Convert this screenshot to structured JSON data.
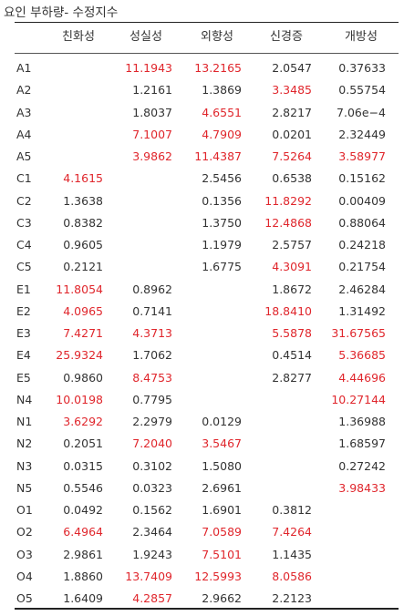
{
  "title": "요인 부하량- 수정지수",
  "columns": [
    "친화성",
    "성실성",
    "외향성",
    "신경증",
    "개방성"
  ],
  "colors": {
    "highlight": "#e0262c",
    "normal": "#333333"
  },
  "rows": [
    {
      "label": "A1",
      "cells": [
        {
          "v": ""
        },
        {
          "v": "11.1943",
          "hl": true
        },
        {
          "v": "13.2165",
          "hl": true
        },
        {
          "v": "2.0547"
        },
        {
          "v": "0.37633"
        }
      ]
    },
    {
      "label": "A2",
      "cells": [
        {
          "v": ""
        },
        {
          "v": "1.2161"
        },
        {
          "v": "1.3869"
        },
        {
          "v": "3.3485",
          "hl": true
        },
        {
          "v": "0.55754"
        }
      ]
    },
    {
      "label": "A3",
      "cells": [
        {
          "v": ""
        },
        {
          "v": "1.8037"
        },
        {
          "v": "4.6551",
          "hl": true
        },
        {
          "v": "2.8217"
        },
        {
          "v": "7.06e−4"
        }
      ]
    },
    {
      "label": "A4",
      "cells": [
        {
          "v": ""
        },
        {
          "v": "7.1007",
          "hl": true
        },
        {
          "v": "4.7909",
          "hl": true
        },
        {
          "v": "0.0201"
        },
        {
          "v": "2.32449"
        }
      ]
    },
    {
      "label": "A5",
      "cells": [
        {
          "v": ""
        },
        {
          "v": "3.9862",
          "hl": true
        },
        {
          "v": "11.4387",
          "hl": true
        },
        {
          "v": "7.5264",
          "hl": true
        },
        {
          "v": "3.58977",
          "hl": true
        }
      ]
    },
    {
      "label": "C1",
      "cells": [
        {
          "v": "4.1615",
          "hl": true
        },
        {
          "v": ""
        },
        {
          "v": "2.5456"
        },
        {
          "v": "0.6538"
        },
        {
          "v": "0.15162"
        }
      ]
    },
    {
      "label": "C2",
      "cells": [
        {
          "v": "1.3638"
        },
        {
          "v": ""
        },
        {
          "v": "0.1356"
        },
        {
          "v": "11.8292",
          "hl": true
        },
        {
          "v": "0.00409"
        }
      ]
    },
    {
      "label": "C3",
      "cells": [
        {
          "v": "0.8382"
        },
        {
          "v": ""
        },
        {
          "v": "1.3750"
        },
        {
          "v": "12.4868",
          "hl": true
        },
        {
          "v": "0.88064"
        }
      ]
    },
    {
      "label": "C4",
      "cells": [
        {
          "v": "0.9605"
        },
        {
          "v": ""
        },
        {
          "v": "1.1979"
        },
        {
          "v": "2.5757"
        },
        {
          "v": "0.24218"
        }
      ]
    },
    {
      "label": "C5",
      "cells": [
        {
          "v": "0.2121"
        },
        {
          "v": ""
        },
        {
          "v": "1.6775"
        },
        {
          "v": "4.3091",
          "hl": true
        },
        {
          "v": "0.21754"
        }
      ]
    },
    {
      "label": "E1",
      "cells": [
        {
          "v": "11.8054",
          "hl": true
        },
        {
          "v": "0.8962"
        },
        {
          "v": ""
        },
        {
          "v": "1.8672"
        },
        {
          "v": "2.46284"
        }
      ]
    },
    {
      "label": "E2",
      "cells": [
        {
          "v": "4.0965",
          "hl": true
        },
        {
          "v": "0.7141"
        },
        {
          "v": ""
        },
        {
          "v": "18.8410",
          "hl": true
        },
        {
          "v": "1.31492"
        }
      ]
    },
    {
      "label": "E3",
      "cells": [
        {
          "v": "7.4271",
          "hl": true
        },
        {
          "v": "4.3713",
          "hl": true
        },
        {
          "v": ""
        },
        {
          "v": "5.5878",
          "hl": true
        },
        {
          "v": "31.67565",
          "hl": true
        }
      ]
    },
    {
      "label": "E4",
      "cells": [
        {
          "v": "25.9324",
          "hl": true
        },
        {
          "v": "1.7062"
        },
        {
          "v": ""
        },
        {
          "v": "0.4514"
        },
        {
          "v": "5.36685",
          "hl": true
        }
      ]
    },
    {
      "label": "E5",
      "cells": [
        {
          "v": "0.9860"
        },
        {
          "v": "8.4753",
          "hl": true
        },
        {
          "v": ""
        },
        {
          "v": "2.8277"
        },
        {
          "v": "4.44696",
          "hl": true
        }
      ]
    },
    {
      "label": "N4",
      "cells": [
        {
          "v": "10.0198",
          "hl": true
        },
        {
          "v": "0.7795"
        },
        {
          "v": ""
        },
        {
          "v": ""
        },
        {
          "v": "10.27144",
          "hl": true
        }
      ]
    },
    {
      "label": "N1",
      "cells": [
        {
          "v": "3.6292",
          "hl": true
        },
        {
          "v": "2.2979"
        },
        {
          "v": "0.0129"
        },
        {
          "v": ""
        },
        {
          "v": "1.36988"
        }
      ]
    },
    {
      "label": "N2",
      "cells": [
        {
          "v": "0.2051"
        },
        {
          "v": "7.2040",
          "hl": true
        },
        {
          "v": "3.5467",
          "hl": true
        },
        {
          "v": ""
        },
        {
          "v": "1.68597"
        }
      ]
    },
    {
      "label": "N3",
      "cells": [
        {
          "v": "0.0315"
        },
        {
          "v": "0.3102"
        },
        {
          "v": "1.5080"
        },
        {
          "v": ""
        },
        {
          "v": "0.27242"
        }
      ]
    },
    {
      "label": "N5",
      "cells": [
        {
          "v": "0.5546"
        },
        {
          "v": "0.0323"
        },
        {
          "v": "2.6961"
        },
        {
          "v": ""
        },
        {
          "v": "3.98433",
          "hl": true
        }
      ]
    },
    {
      "label": "O1",
      "cells": [
        {
          "v": "0.0492"
        },
        {
          "v": "0.1562"
        },
        {
          "v": "1.6901"
        },
        {
          "v": "0.3812"
        },
        {
          "v": ""
        }
      ]
    },
    {
      "label": "O2",
      "cells": [
        {
          "v": "6.4964",
          "hl": true
        },
        {
          "v": "2.3464"
        },
        {
          "v": "7.0589",
          "hl": true
        },
        {
          "v": "7.4264",
          "hl": true
        },
        {
          "v": ""
        }
      ]
    },
    {
      "label": "O3",
      "cells": [
        {
          "v": "2.9861"
        },
        {
          "v": "1.9243"
        },
        {
          "v": "7.5101",
          "hl": true
        },
        {
          "v": "1.1435"
        },
        {
          "v": ""
        }
      ]
    },
    {
      "label": "O4",
      "cells": [
        {
          "v": "1.8860"
        },
        {
          "v": "13.7409",
          "hl": true
        },
        {
          "v": "12.5993",
          "hl": true
        },
        {
          "v": "8.0586",
          "hl": true
        },
        {
          "v": ""
        }
      ]
    },
    {
      "label": "O5",
      "cells": [
        {
          "v": "1.6409"
        },
        {
          "v": "4.2857",
          "hl": true
        },
        {
          "v": "2.9662"
        },
        {
          "v": "2.2123"
        },
        {
          "v": ""
        }
      ]
    }
  ]
}
